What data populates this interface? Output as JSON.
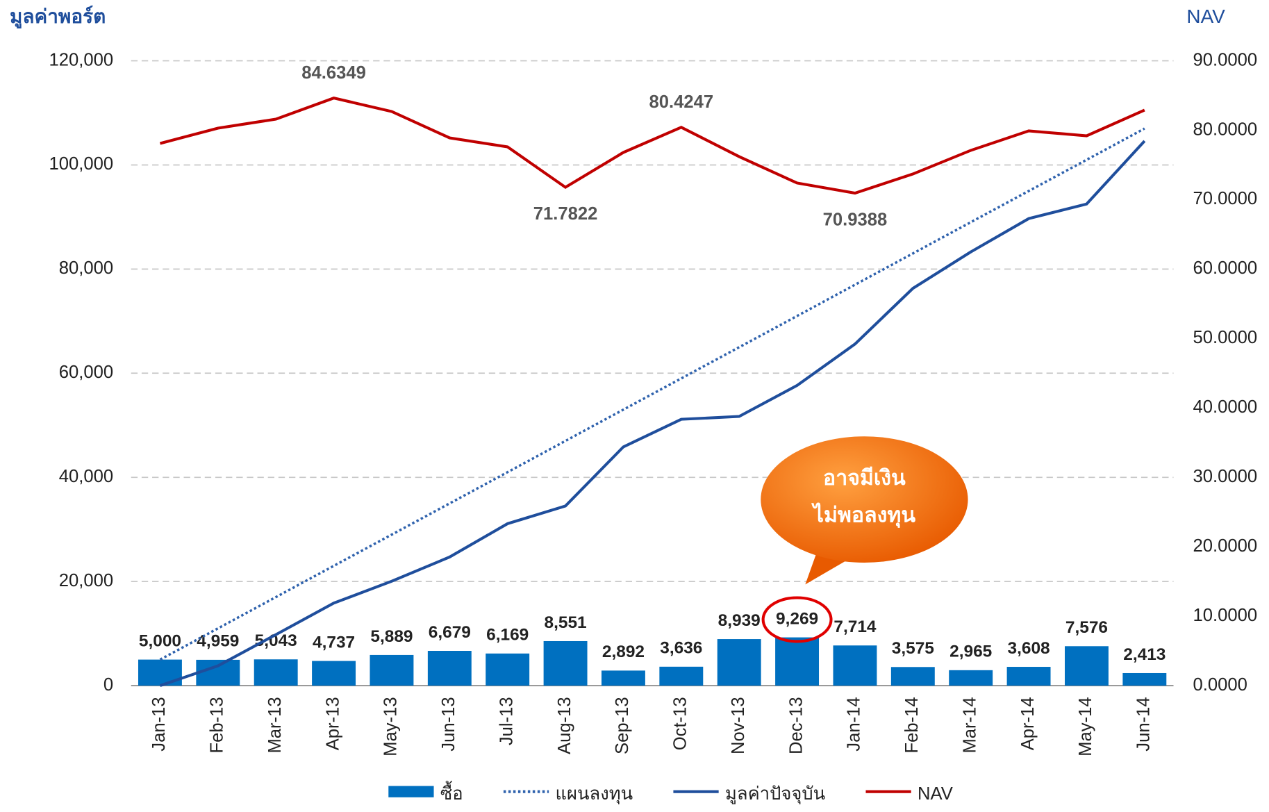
{
  "chart_data": {
    "type": "combo",
    "y_label": "มูลค่าพอร์ต",
    "y2_label": "NAV",
    "categories": [
      "Jan-13",
      "Feb-13",
      "Mar-13",
      "Apr-13",
      "May-13",
      "Jun-13",
      "Jul-13",
      "Aug-13",
      "Sep-13",
      "Oct-13",
      "Nov-13",
      "Dec-13",
      "Jan-14",
      "Feb-14",
      "Mar-14",
      "Apr-14",
      "May-14",
      "Jun-14"
    ],
    "ylim": [
      0,
      120000
    ],
    "yticks": [
      0,
      {
        "value": 20000,
        "label": "20,000"
      },
      {
        "value": 40000,
        "label": "40,000"
      },
      {
        "value": 60000,
        "label": "60,000"
      },
      {
        "value": 80000,
        "label": "80,000"
      },
      {
        "value": 100000,
        "label": "100,000"
      },
      {
        "value": 120000,
        "label": "120,000"
      }
    ],
    "y2lim": [
      0,
      90
    ],
    "y2ticks": [
      {
        "value": 0,
        "label": "0.0000"
      },
      {
        "value": 10,
        "label": "10.0000"
      },
      {
        "value": 20,
        "label": "20.0000"
      },
      {
        "value": 30,
        "label": "30.0000"
      },
      {
        "value": 40,
        "label": "40.0000"
      },
      {
        "value": 50,
        "label": "50.0000"
      },
      {
        "value": 60,
        "label": "60.0000"
      },
      {
        "value": 70,
        "label": "70.0000"
      },
      {
        "value": 80,
        "label": "80.0000"
      },
      {
        "value": 90,
        "label": "90.0000"
      }
    ],
    "grid": true,
    "series": [
      {
        "name": "ซื้อ",
        "type": "bar",
        "color": "#0070c0",
        "values": [
          5000,
          4959,
          5043,
          4737,
          5889,
          6679,
          6169,
          8551,
          2892,
          3636,
          8939,
          9269,
          7714,
          3575,
          2965,
          3608,
          7576,
          2413
        ],
        "value_labels": [
          "5,000",
          "4,959",
          "5,043",
          "4,737",
          "5,889",
          "6,679",
          "6,169",
          "8,551",
          "2,892",
          "3,636",
          "8,939",
          "9,269",
          "7,714",
          "3,575",
          "2,965",
          "3,608",
          "7,576",
          "2,413"
        ]
      },
      {
        "name": "แผนลงทุน",
        "type": "line",
        "style": "dotted",
        "color": "#2f62ad",
        "values": [
          5000,
          11000,
          17000,
          23000,
          29000,
          35000,
          41000,
          47000,
          53000,
          59000,
          65000,
          71000,
          77000,
          83000,
          89000,
          95000,
          101000,
          107000
        ]
      },
      {
        "name": "มูลค่าปัจจุบัน",
        "type": "line",
        "style": "solid",
        "color": "#1f4e9c",
        "values": [
          0,
          3800,
          9800,
          15850,
          20050,
          24700,
          31100,
          34500,
          45850,
          51150,
          51700,
          57650,
          65600,
          76300,
          83300,
          89700,
          92500,
          104600
        ]
      },
      {
        "name": "NAV",
        "type": "line",
        "style": "solid",
        "color": "#c00000",
        "axis": "y2",
        "values": [
          78.1,
          80.3,
          81.6,
          84.6349,
          82.7,
          78.9,
          77.6,
          71.7822,
          76.8,
          80.4247,
          76.2,
          72.4,
          70.9388,
          73.7,
          77.1,
          79.9,
          79.2,
          82.9
        ],
        "value_labels": [
          null,
          null,
          null,
          "84.6349",
          null,
          null,
          null,
          "71.7822",
          null,
          "80.4247",
          null,
          null,
          "70.9388",
          null,
          null,
          null,
          null,
          null
        ]
      }
    ],
    "callout": [
      "อาจมีเงิน",
      "ไม่พอลงทุน"
    ]
  }
}
